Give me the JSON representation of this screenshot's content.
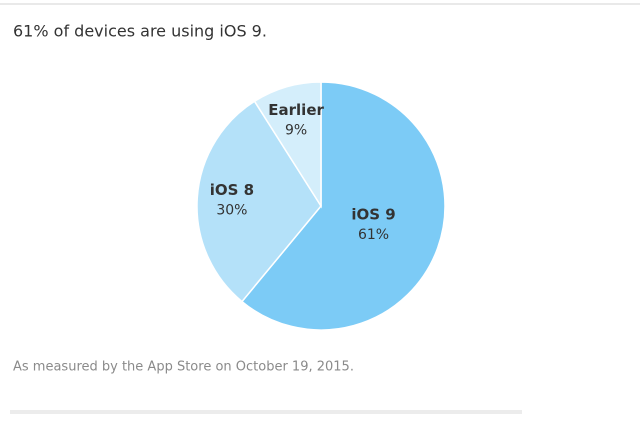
{
  "chart_data": {
    "type": "pie",
    "title": "61% of devices are using iOS 9.",
    "footnote": "As measured by the App Store on October 19, 2015.",
    "categories": [
      "iOS 9",
      "iOS 8",
      "Earlier"
    ],
    "values": [
      61,
      30,
      9
    ],
    "value_labels": [
      "61%",
      "30%",
      "9%"
    ],
    "colors": [
      "#7ccbf6",
      "#b4e1f9",
      "#d4eefb"
    ]
  }
}
